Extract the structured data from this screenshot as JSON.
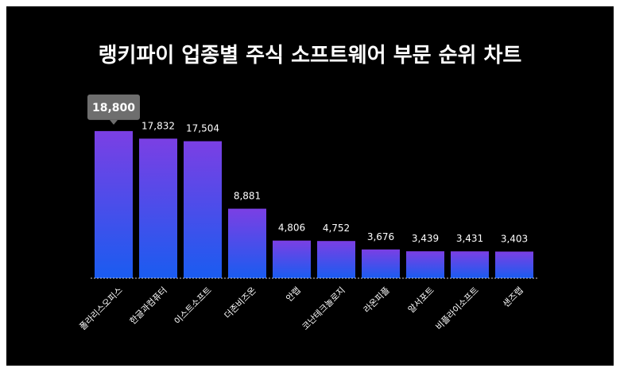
{
  "chart_data": {
    "type": "bar",
    "title": "랭키파이 업종별 주식 소프트웨어 부문 순위 차트",
    "categories": [
      "폴라리스오피스",
      "한글과컴퓨터",
      "이스트소프트",
      "더존비즈온",
      "안랩",
      "코난테크놀로지",
      "라온피플",
      "알서포트",
      "비플라이소프트",
      "샌즈랩"
    ],
    "values": [
      18800,
      17832,
      17504,
      8881,
      4806,
      4752,
      3676,
      3439,
      3431,
      3403
    ],
    "value_labels": [
      "18,800",
      "17,832",
      "17,504",
      "8,881",
      "4,806",
      "4,752",
      "3,676",
      "3,439",
      "3,431",
      "3,403"
    ],
    "highlight_index": 0,
    "ylim": [
      0,
      19500
    ],
    "xlabel": "",
    "ylabel": "",
    "grid": false,
    "colors": {
      "background": "#000000",
      "bar_top": "#7b3fe4",
      "bar_bottom": "#1a5cf0",
      "highlight_box": "#6e6e6e",
      "text": "#ffffff",
      "baseline": "#cccccc"
    }
  }
}
